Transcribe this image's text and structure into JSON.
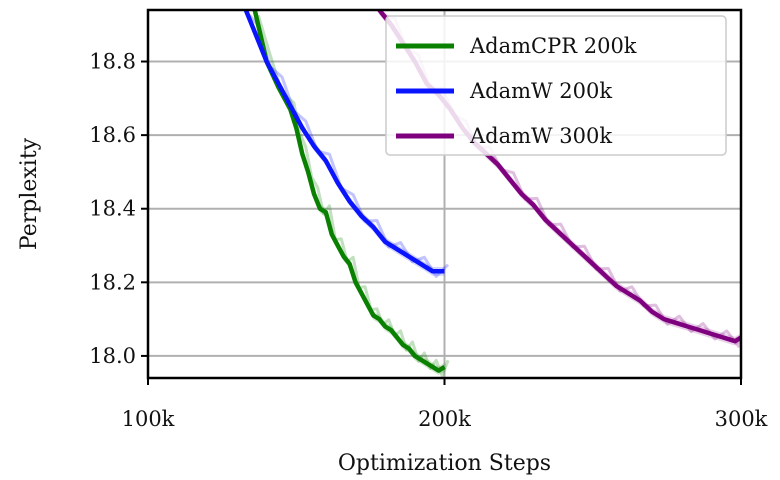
{
  "chart_data": {
    "type": "line",
    "title": "",
    "xlabel": "Optimization Steps",
    "ylabel": "Perplexity",
    "xlim": [
      100000,
      300000
    ],
    "ylim": [
      17.94,
      18.94
    ],
    "xticks": [
      {
        "value": 100000,
        "label": "100k"
      },
      {
        "value": 200000,
        "label": "200k"
      },
      {
        "value": 300000,
        "label": "300k"
      }
    ],
    "yticks": [
      {
        "value": 18.0,
        "label": "18.0"
      },
      {
        "value": 18.2,
        "label": "18.2"
      },
      {
        "value": 18.4,
        "label": "18.4"
      },
      {
        "value": 18.6,
        "label": "18.6"
      },
      {
        "value": 18.8,
        "label": "18.8"
      }
    ],
    "grid": true,
    "legend_position": "top-right",
    "series": [
      {
        "name": "AdamCPR 200k",
        "color": "#0a8000",
        "x": [
          136000,
          140000,
          144000,
          148000,
          150000,
          152000,
          154000,
          156000,
          158000,
          160000,
          162000,
          164000,
          166000,
          168000,
          170000,
          172000,
          174000,
          176000,
          178000,
          180000,
          182000,
          184000,
          186000,
          188000,
          190000,
          192000,
          194000,
          196000,
          198000,
          200000
        ],
        "y": [
          18.94,
          18.8,
          18.73,
          18.67,
          18.62,
          18.55,
          18.5,
          18.44,
          18.4,
          18.39,
          18.33,
          18.3,
          18.27,
          18.25,
          18.2,
          18.17,
          18.14,
          18.11,
          18.1,
          18.08,
          18.07,
          18.05,
          18.03,
          18.02,
          18.0,
          17.99,
          17.98,
          17.97,
          17.96,
          17.97
        ]
      },
      {
        "name": "AdamW 200k",
        "color": "#0a14ff",
        "x": [
          133000,
          136000,
          140000,
          144000,
          148000,
          152000,
          156000,
          160000,
          164000,
          168000,
          172000,
          176000,
          180000,
          184000,
          188000,
          192000,
          196000,
          200000
        ],
        "y": [
          18.94,
          18.88,
          18.8,
          18.74,
          18.68,
          18.62,
          18.57,
          18.53,
          18.47,
          18.42,
          18.38,
          18.35,
          18.31,
          18.29,
          18.27,
          18.25,
          18.23,
          18.23
        ]
      },
      {
        "name": "AdamW 300k",
        "color": "#7f007f",
        "x": [
          178000,
          182000,
          186000,
          190000,
          194000,
          198000,
          202000,
          206000,
          210000,
          214000,
          218000,
          222000,
          226000,
          230000,
          234000,
          238000,
          242000,
          246000,
          250000,
          254000,
          258000,
          262000,
          266000,
          270000,
          274000,
          278000,
          282000,
          286000,
          290000,
          294000,
          298000,
          300000
        ],
        "y": [
          18.94,
          18.9,
          18.85,
          18.8,
          18.74,
          18.71,
          18.67,
          18.62,
          18.58,
          18.55,
          18.52,
          18.48,
          18.44,
          18.41,
          18.37,
          18.34,
          18.31,
          18.28,
          18.25,
          18.22,
          18.19,
          18.17,
          18.15,
          18.12,
          18.1,
          18.09,
          18.08,
          18.07,
          18.06,
          18.05,
          18.04,
          18.05
        ]
      }
    ]
  }
}
